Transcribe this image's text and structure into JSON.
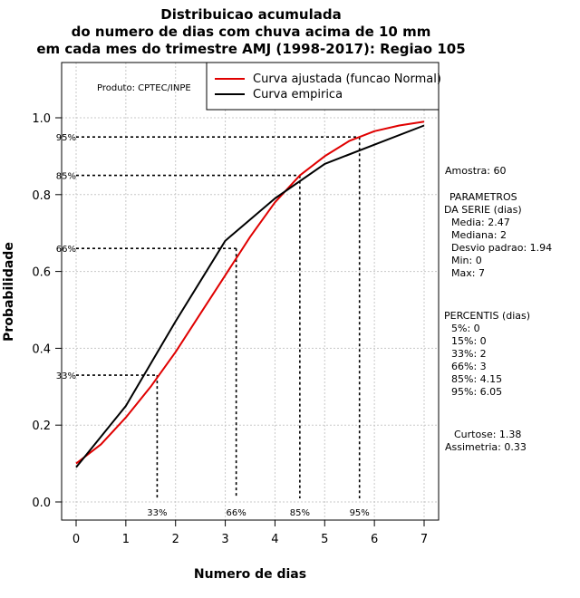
{
  "chart_data": {
    "type": "line",
    "title_lines": [
      "Distribuicao acumulada",
      "do numero de dias com chuva acima de 10 mm",
      "em cada mes do trimestre AMJ (1998-2017): Regiao 105"
    ],
    "xlabel": "Numero de dias",
    "ylabel": "Probabilidade",
    "xlim": [
      -0.3,
      7.3
    ],
    "ylim": [
      -0.04,
      1.15
    ],
    "x_ticks": [
      "0",
      "1",
      "2",
      "3",
      "4",
      "5",
      "6",
      "7"
    ],
    "y_ticks": [
      "0.0",
      "0.2",
      "0.4",
      "0.6",
      "0.8",
      "1.0"
    ],
    "grid": true,
    "product_label": "Produto: CPTEC/INPE",
    "legend_position": "top-right",
    "series": [
      {
        "name": "Curva ajustada (funcao Normal)",
        "color": "#e00000",
        "x": [
          0,
          0.5,
          1,
          1.5,
          2,
          2.5,
          3,
          3.5,
          4,
          4.5,
          5,
          5.5,
          6,
          6.5,
          7
        ],
        "y": [
          0.1,
          0.15,
          0.22,
          0.3,
          0.39,
          0.49,
          0.59,
          0.69,
          0.78,
          0.85,
          0.9,
          0.94,
          0.965,
          0.98,
          0.99
        ]
      },
      {
        "name": "Curva empirica",
        "color": "#000000",
        "x": [
          0,
          1,
          2,
          3,
          4,
          5,
          6,
          7
        ],
        "y": [
          0.09,
          0.25,
          0.47,
          0.68,
          0.79,
          0.88,
          0.93,
          0.98
        ]
      }
    ],
    "percentile_markers": [
      {
        "label": "33%",
        "x": 1.63,
        "y": 0.33
      },
      {
        "label": "66%",
        "x": 3.22,
        "y": 0.66
      },
      {
        "label": "85%",
        "x": 4.5,
        "y": 0.85
      },
      {
        "label": "95%",
        "x": 5.7,
        "y": 0.95
      }
    ]
  },
  "stats_panel": {
    "amostra": "Amostra: 60",
    "parametros_title": "PARAMETROS",
    "parametros_subtitle": "DA SERIE (dias)",
    "media": "Media: 2.47",
    "mediana": "Mediana: 2",
    "desvio": "Desvio padrao: 1.94",
    "min": "Min: 0",
    "max": "Max: 7",
    "percentis_title": "PERCENTIS (dias)",
    "p5": "5%: 0",
    "p15": "15%: 0",
    "p33": "33%: 2",
    "p66": "66%: 3",
    "p85": "85%: 4.15",
    "p95": "95%: 6.05",
    "curtose": "Curtose: 1.38",
    "assimetria": "Assimetria: 0.33"
  }
}
